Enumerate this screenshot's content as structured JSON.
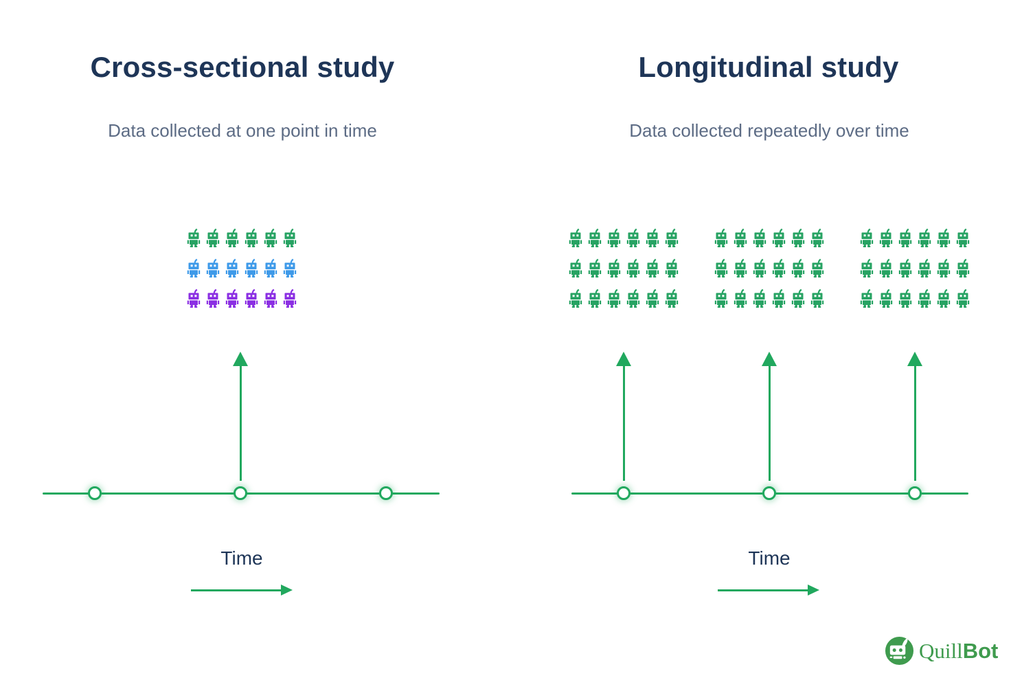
{
  "cross_panel": {
    "title": "Cross-sectional study",
    "subtitle": "Data collected at one point in time",
    "time_label": "Time",
    "grid": {
      "rows": 3,
      "cols": 6,
      "row_colors": [
        "#27A363",
        "#3E9AE9",
        "#8B2FE3"
      ]
    },
    "timeline": {
      "dots": 3,
      "arrows": 1
    }
  },
  "long_panel": {
    "title": "Longitudinal study",
    "subtitle": "Data collected repeatedly over time",
    "time_label": "Time",
    "groups": 3,
    "grid": {
      "rows": 3,
      "cols": 6,
      "row_colors": [
        "#27A363",
        "#27A363",
        "#27A363"
      ]
    },
    "timeline": {
      "dots": 3,
      "arrows": 3
    }
  },
  "logo": {
    "text_quill": "Quill",
    "text_bot": "Bot"
  },
  "colors": {
    "title_navy": "#1E3557",
    "subtitle_gray": "#5D6C85",
    "timeline_green": "#21A85E",
    "logo_green": "#3F9B4E"
  }
}
